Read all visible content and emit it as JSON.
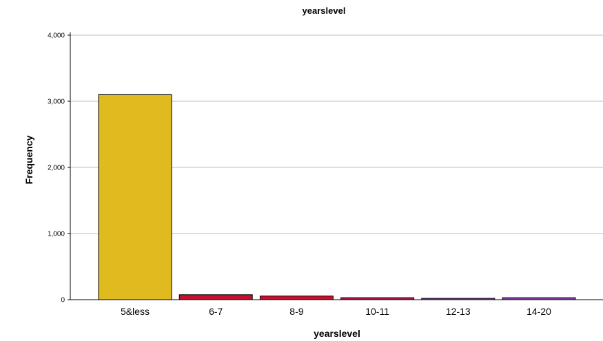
{
  "chart_data": {
    "type": "bar",
    "title": "yearslevel",
    "xlabel": "yearslevel",
    "ylabel": "Frequency",
    "categories": [
      "5&less",
      "6-7",
      "8-9",
      "10-11",
      "12-13",
      "14-20"
    ],
    "values": [
      3100,
      75,
      55,
      30,
      20,
      30
    ],
    "colors": [
      "#e0bb1f",
      "#c8102e",
      "#c8102e",
      "#b0154a",
      "#8a3fb0",
      "#8a3fb0"
    ],
    "ylim": [
      0,
      4000
    ],
    "yticks": [
      0,
      1000,
      2000,
      3000,
      4000
    ],
    "ytick_labels": [
      "0",
      "1,000",
      "2,000",
      "3,000",
      "4,000"
    ],
    "grid": true
  }
}
